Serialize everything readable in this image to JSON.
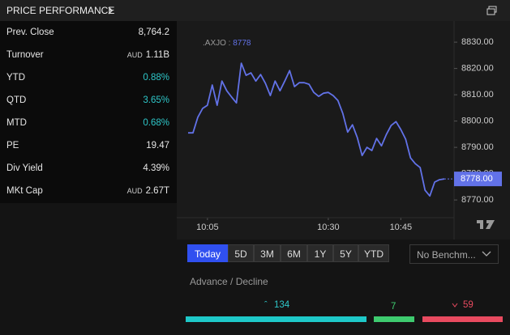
{
  "header": {
    "title": "PRICE PERFORMANCE"
  },
  "stats": [
    {
      "label": "Prev. Close",
      "value": "8,764.2"
    },
    {
      "label": "Turnover",
      "unit": "AUD",
      "value": "1.11B"
    },
    {
      "label": "YTD",
      "value": "0.88%",
      "color": "#2ec7c9"
    },
    {
      "label": "QTD",
      "value": "3.65%",
      "color": "#2ec7c9"
    },
    {
      "label": "MTD",
      "value": "0.68%",
      "color": "#2ec7c9"
    },
    {
      "label": "PE",
      "value": "19.47"
    },
    {
      "label": "Div Yield",
      "value": "4.39%"
    },
    {
      "label": "MKt Cap",
      "unit": "AUD",
      "value": "2.67T"
    }
  ],
  "chart_data": {
    "type": "line",
    "legend": {
      "symbol": ".AXJO",
      "value": "8778"
    },
    "series": [
      {
        "name": ".AXJO",
        "color": "#6272e8",
        "values": [
          8795.5,
          8795.5,
          8801.4,
          8804.8,
          8806.0,
          8813.7,
          8806.0,
          8815.2,
          8811.5,
          8809.1,
          8806.9,
          8822.0,
          8817.4,
          8818.3,
          8815.2,
          8817.7,
          8814.3,
          8809.7,
          8815.2,
          8811.5,
          8815.2,
          8819.2,
          8813.1,
          8814.6,
          8814.6,
          8814.0,
          8810.9,
          8809.4,
          8810.6,
          8810.9,
          8809.7,
          8807.8,
          8802.9,
          8795.8,
          8798.6,
          8793.7,
          8786.9,
          8790.0,
          8788.8,
          8793.4,
          8790.6,
          8794.9,
          8798.3,
          8799.8,
          8796.8,
          8793.1,
          8786.0,
          8783.8,
          8782.3,
          8773.7,
          8771.5,
          8776.8,
          8777.7,
          8778
        ],
        "last_label": "8778.00"
      }
    ],
    "xlim": [
      0,
      53
    ],
    "xticks": [
      {
        "value": 4,
        "label": "10:05"
      },
      {
        "value": 29,
        "label": "10:30"
      },
      {
        "value": 44,
        "label": "10:45"
      }
    ],
    "ylim": [
      8764.5,
      8836.8
    ],
    "yticks": [
      {
        "value": 8770,
        "label": "8770.00"
      },
      {
        "value": 8780,
        "label": "8780.00"
      },
      {
        "value": 8790,
        "label": "8790.00"
      },
      {
        "value": 8800,
        "label": "8800.00"
      },
      {
        "value": 8810,
        "label": "8810.00"
      },
      {
        "value": 8820,
        "label": "8820.00"
      },
      {
        "value": 8830,
        "label": "8830.00"
      }
    ]
  },
  "ranges": [
    "Today",
    "5D",
    "3M",
    "6M",
    "1Y",
    "5Y",
    "YTD"
  ],
  "benchmark": "No Benchm...",
  "advance_decline": {
    "title": "Advance / Decline",
    "advance": "134",
    "unchanged": "7",
    "decline": "59"
  }
}
